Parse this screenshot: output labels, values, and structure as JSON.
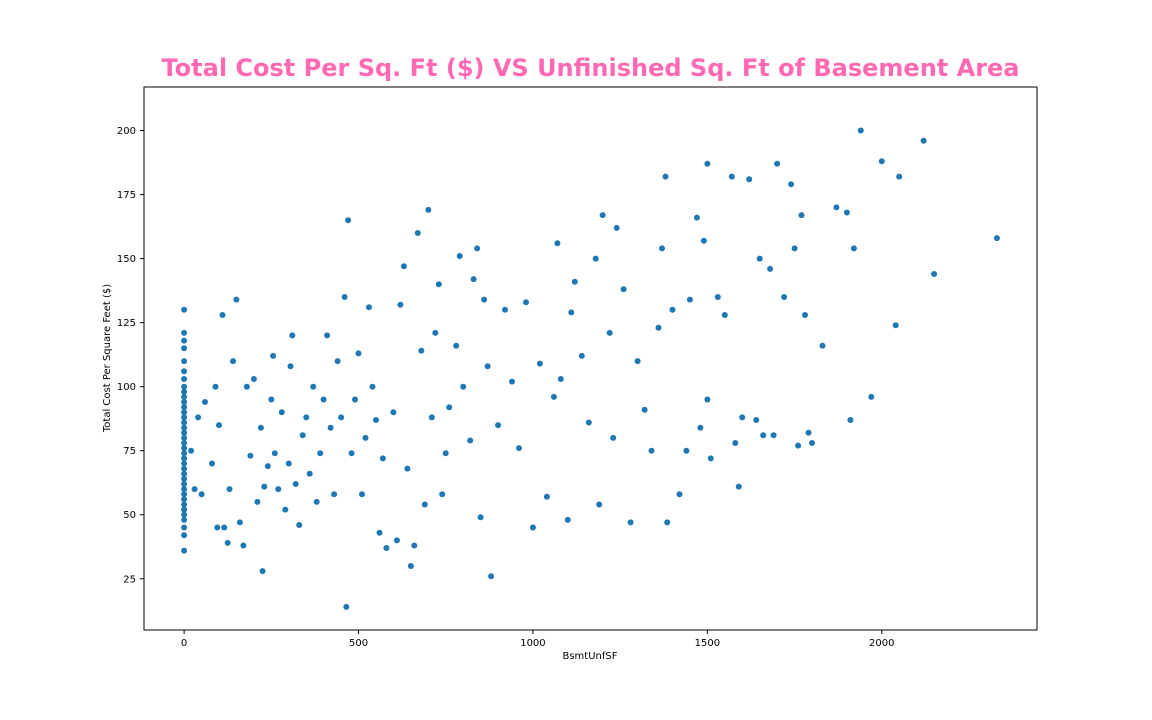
{
  "chart_data": {
    "type": "scatter",
    "title": "Total Cost Per Sq. Ft ($) VS Unfinished Sq. Ft of Basement Area",
    "xlabel": "BsmtUnfSF",
    "ylabel": "Total Cost Per Square Feet ($)",
    "xlim": [
      -115,
      2445
    ],
    "ylim": [
      5,
      217
    ],
    "xticks": [
      0,
      500,
      1000,
      1500,
      2000
    ],
    "yticks": [
      25,
      50,
      75,
      100,
      125,
      150,
      175,
      200
    ],
    "grid": false,
    "legend": "none",
    "point_color": "#1f77b4",
    "title_color": "#ff69b4",
    "points": [
      [
        0,
        36
      ],
      [
        0,
        42
      ],
      [
        0,
        45
      ],
      [
        0,
        48
      ],
      [
        0,
        50
      ],
      [
        0,
        52
      ],
      [
        0,
        54
      ],
      [
        0,
        56
      ],
      [
        0,
        58
      ],
      [
        0,
        60
      ],
      [
        0,
        62
      ],
      [
        0,
        64
      ],
      [
        0,
        66
      ],
      [
        0,
        68
      ],
      [
        0,
        70
      ],
      [
        0,
        72
      ],
      [
        0,
        74
      ],
      [
        0,
        76
      ],
      [
        0,
        78
      ],
      [
        0,
        80
      ],
      [
        0,
        82
      ],
      [
        0,
        84
      ],
      [
        0,
        86
      ],
      [
        0,
        88
      ],
      [
        0,
        90
      ],
      [
        0,
        92
      ],
      [
        0,
        94
      ],
      [
        0,
        96
      ],
      [
        0,
        98
      ],
      [
        0,
        100
      ],
      [
        0,
        103
      ],
      [
        0,
        106
      ],
      [
        0,
        110
      ],
      [
        0,
        115
      ],
      [
        0,
        118
      ],
      [
        0,
        121
      ],
      [
        0,
        130
      ],
      [
        20,
        75
      ],
      [
        30,
        60
      ],
      [
        40,
        88
      ],
      [
        50,
        58
      ],
      [
        60,
        94
      ],
      [
        80,
        70
      ],
      [
        90,
        100
      ],
      [
        95,
        45
      ],
      [
        100,
        85
      ],
      [
        110,
        128
      ],
      [
        115,
        45
      ],
      [
        125,
        39
      ],
      [
        130,
        60
      ],
      [
        140,
        110
      ],
      [
        150,
        134
      ],
      [
        160,
        47
      ],
      [
        170,
        38
      ],
      [
        180,
        100
      ],
      [
        190,
        73
      ],
      [
        200,
        103
      ],
      [
        210,
        55
      ],
      [
        220,
        84
      ],
      [
        225,
        28
      ],
      [
        230,
        61
      ],
      [
        240,
        69
      ],
      [
        250,
        95
      ],
      [
        255,
        112
      ],
      [
        260,
        74
      ],
      [
        270,
        60
      ],
      [
        280,
        90
      ],
      [
        290,
        52
      ],
      [
        300,
        70
      ],
      [
        305,
        108
      ],
      [
        310,
        120
      ],
      [
        320,
        62
      ],
      [
        330,
        46
      ],
      [
        340,
        81
      ],
      [
        350,
        88
      ],
      [
        360,
        66
      ],
      [
        370,
        100
      ],
      [
        380,
        55
      ],
      [
        390,
        74
      ],
      [
        400,
        95
      ],
      [
        410,
        120
      ],
      [
        420,
        84
      ],
      [
        430,
        58
      ],
      [
        440,
        110
      ],
      [
        450,
        88
      ],
      [
        460,
        135
      ],
      [
        465,
        14
      ],
      [
        470,
        165
      ],
      [
        480,
        74
      ],
      [
        490,
        95
      ],
      [
        500,
        113
      ],
      [
        510,
        58
      ],
      [
        520,
        80
      ],
      [
        530,
        131
      ],
      [
        540,
        100
      ],
      [
        550,
        87
      ],
      [
        560,
        43
      ],
      [
        570,
        72
      ],
      [
        580,
        37
      ],
      [
        600,
        90
      ],
      [
        610,
        40
      ],
      [
        620,
        132
      ],
      [
        630,
        147
      ],
      [
        640,
        68
      ],
      [
        650,
        30
      ],
      [
        660,
        38
      ],
      [
        670,
        160
      ],
      [
        680,
        114
      ],
      [
        690,
        54
      ],
      [
        700,
        169
      ],
      [
        710,
        88
      ],
      [
        720,
        121
      ],
      [
        730,
        140
      ],
      [
        740,
        58
      ],
      [
        750,
        74
      ],
      [
        760,
        92
      ],
      [
        780,
        116
      ],
      [
        790,
        151
      ],
      [
        800,
        100
      ],
      [
        820,
        79
      ],
      [
        830,
        142
      ],
      [
        840,
        154
      ],
      [
        850,
        49
      ],
      [
        860,
        134
      ],
      [
        870,
        108
      ],
      [
        880,
        26
      ],
      [
        900,
        85
      ],
      [
        920,
        130
      ],
      [
        940,
        102
      ],
      [
        960,
        76
      ],
      [
        980,
        133
      ],
      [
        1000,
        45
      ],
      [
        1020,
        109
      ],
      [
        1040,
        57
      ],
      [
        1060,
        96
      ],
      [
        1070,
        156
      ],
      [
        1080,
        103
      ],
      [
        1100,
        48
      ],
      [
        1110,
        129
      ],
      [
        1120,
        141
      ],
      [
        1140,
        112
      ],
      [
        1160,
        86
      ],
      [
        1180,
        150
      ],
      [
        1190,
        54
      ],
      [
        1200,
        167
      ],
      [
        1220,
        121
      ],
      [
        1230,
        80
      ],
      [
        1240,
        162
      ],
      [
        1260,
        138
      ],
      [
        1280,
        47
      ],
      [
        1300,
        110
      ],
      [
        1320,
        91
      ],
      [
        1340,
        75
      ],
      [
        1360,
        123
      ],
      [
        1370,
        154
      ],
      [
        1380,
        182
      ],
      [
        1385,
        47
      ],
      [
        1400,
        130
      ],
      [
        1420,
        58
      ],
      [
        1440,
        75
      ],
      [
        1450,
        134
      ],
      [
        1470,
        166
      ],
      [
        1480,
        84
      ],
      [
        1490,
        157
      ],
      [
        1500,
        187
      ],
      [
        1500,
        95
      ],
      [
        1510,
        72
      ],
      [
        1530,
        135
      ],
      [
        1550,
        128
      ],
      [
        1570,
        182
      ],
      [
        1580,
        78
      ],
      [
        1590,
        61
      ],
      [
        1600,
        88
      ],
      [
        1620,
        181
      ],
      [
        1640,
        87
      ],
      [
        1650,
        150
      ],
      [
        1660,
        81
      ],
      [
        1680,
        146
      ],
      [
        1690,
        81
      ],
      [
        1700,
        187
      ],
      [
        1720,
        135
      ],
      [
        1740,
        179
      ],
      [
        1750,
        154
      ],
      [
        1760,
        77
      ],
      [
        1770,
        167
      ],
      [
        1780,
        128
      ],
      [
        1790,
        82
      ],
      [
        1800,
        78
      ],
      [
        1830,
        116
      ],
      [
        1870,
        170
      ],
      [
        1900,
        168
      ],
      [
        1910,
        87
      ],
      [
        1920,
        154
      ],
      [
        1940,
        200
      ],
      [
        1970,
        96
      ],
      [
        2000,
        188
      ],
      [
        2040,
        124
      ],
      [
        2050,
        182
      ],
      [
        2120,
        196
      ],
      [
        2150,
        144
      ],
      [
        2330,
        158
      ]
    ]
  }
}
